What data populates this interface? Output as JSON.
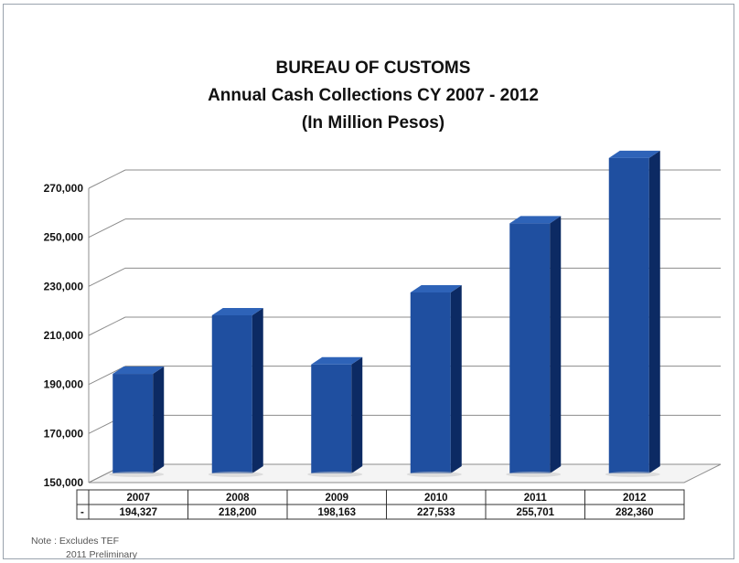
{
  "chart_data": {
    "type": "bar",
    "title": "BUREAU OF CUSTOMS",
    "subtitle": "Annual Cash Collections CY 2007 - 2012",
    "subtitle2": "(In Million Pesos)",
    "categories": [
      "2007",
      "2008",
      "2009",
      "2010",
      "2011",
      "2012"
    ],
    "values": [
      194327,
      218200,
      198163,
      227533,
      255701,
      282360
    ],
    "value_labels": [
      "194,327",
      "218,200",
      "198,163",
      "227,533",
      "255,701",
      "282,360"
    ],
    "yticks": [
      "150,000",
      "170,000",
      "190,000",
      "210,000",
      "230,000",
      "250,000",
      "270,000"
    ],
    "ytick_values": [
      150000,
      170000,
      190000,
      210000,
      230000,
      250000,
      270000
    ],
    "ylim": [
      150000,
      270000
    ],
    "grid": true,
    "table_row_marker": "-",
    "bar_color": "#1f4fa0",
    "bar_side_color": "#0c2a63",
    "bar_top_color": "#2e63b8"
  },
  "notes": {
    "line1": "Note : Excludes TEF",
    "line2": "2011 Preliminary"
  }
}
